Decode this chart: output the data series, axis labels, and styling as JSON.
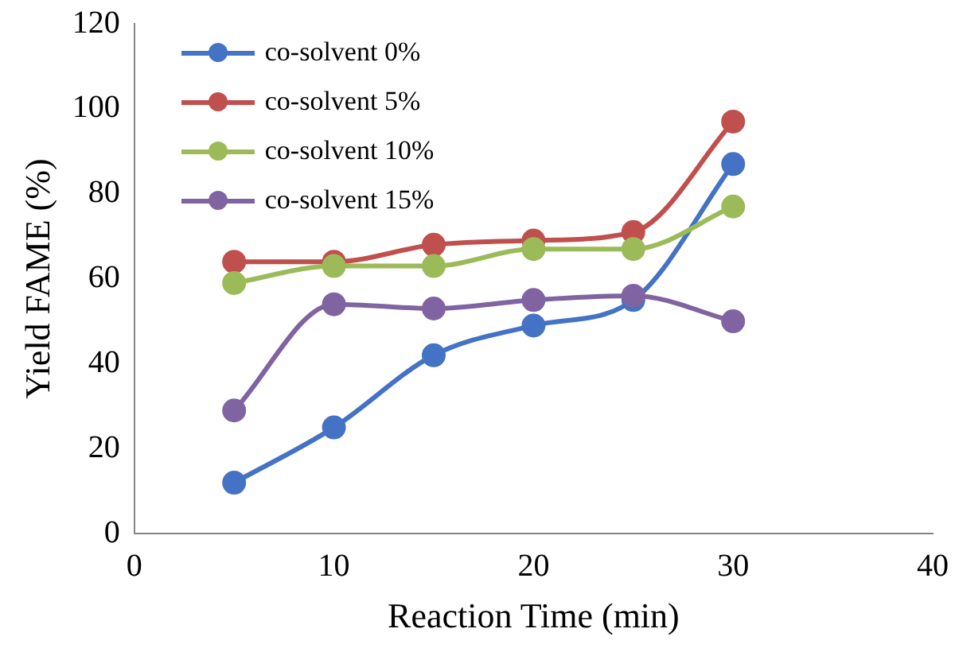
{
  "chart_data": {
    "type": "line",
    "xlabel": "Reaction Time (min)",
    "ylabel": "Yield FAME (%)",
    "x": [
      5,
      10,
      15,
      20,
      25,
      30
    ],
    "xlim": [
      0,
      40
    ],
    "xticks": [
      0,
      10,
      20,
      30,
      40
    ],
    "ylim": [
      0,
      120
    ],
    "yticks": [
      0,
      20,
      40,
      60,
      80,
      100,
      120
    ],
    "grid": false,
    "legend": "top left",
    "marker": "circle",
    "line_style": "solid",
    "series": [
      {
        "name": "co-solvent 0%",
        "color": "#4472c4",
        "values": [
          12,
          25,
          42,
          49,
          55,
          87
        ]
      },
      {
        "name": "co-solvent 5%",
        "color": "#c0504d",
        "values": [
          64,
          64,
          68,
          69,
          71,
          97
        ]
      },
      {
        "name": "co-solvent 10%",
        "color": "#9bbb59",
        "values": [
          59,
          63,
          63,
          67,
          67,
          77
        ]
      },
      {
        "name": "co-solvent 15%",
        "color": "#8064a2",
        "values": [
          29,
          54,
          53,
          55,
          56,
          50
        ]
      }
    ]
  }
}
